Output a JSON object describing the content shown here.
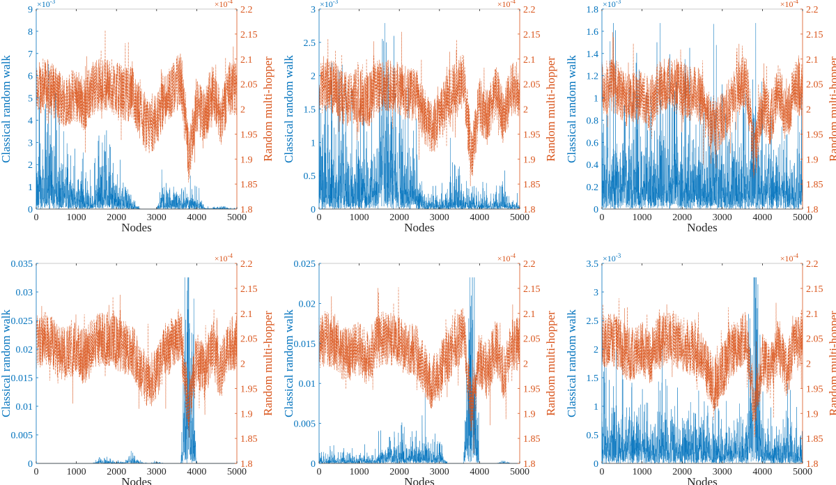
{
  "chart_data": {
    "type": "line",
    "layout": "2x3 grid",
    "x_ticks": [
      0,
      1000,
      2000,
      3000,
      4000,
      5000
    ],
    "xlabel": "Nodes",
    "xlim": [
      0,
      5000
    ],
    "bin_x": [
      0,
      200,
      400,
      600,
      800,
      1000,
      1200,
      1400,
      1600,
      1800,
      2000,
      2200,
      2400,
      2600,
      2800,
      3000,
      3200,
      3400,
      3600,
      3800,
      4000,
      4200,
      4400,
      4600,
      4800
    ],
    "colors": {
      "classical": "#0072BD",
      "multi_hopper": "#D95319"
    },
    "grid": false,
    "legend": "none",
    "panels": [
      {
        "left_axis": {
          "label": "Classical random walk",
          "multiplier": "×10",
          "exponent": "-3",
          "ylim": [
            0,
            9
          ],
          "ticks": [
            "0",
            "1",
            "2",
            "3",
            "4",
            "5",
            "6",
            "7",
            "8",
            "9"
          ]
        },
        "right_axis": {
          "label": "Random multi-hopper",
          "multiplier": "×10",
          "exponent": "-4",
          "ylim": [
            1.8,
            2.2
          ],
          "ticks": [
            "1.8",
            "1.85",
            "1.9",
            "1.95",
            "2",
            "2.05",
            "2.1",
            "2.15",
            "2.2"
          ]
        },
        "series": [
          {
            "axis": "left",
            "style": "solid",
            "approx_bin_means": [
              1.0,
              1.2,
              1.0,
              0.8,
              0.6,
              0.5,
              0.4,
              0.2,
              0.8,
              0.7,
              0.4,
              0.3,
              0.2,
              0,
              0,
              0,
              0.4,
              0.3,
              0.3,
              0.2,
              0.2,
              0.02,
              0.02,
              0.05,
              0.01
            ]
          },
          {
            "axis": "right",
            "style": "dashed",
            "approx_bin_means": [
              2.04,
              2.05,
              2.04,
              2.02,
              2.02,
              2.03,
              2.01,
              2.04,
              2.05,
              2.05,
              2.04,
              2.03,
              2.03,
              1.99,
              1.96,
              1.98,
              2.02,
              2.04,
              2.06,
              1.9,
              2.01,
              1.98,
              2.04,
              1.98,
              2.04
            ]
          }
        ]
      },
      {
        "left_axis": {
          "label": "Classical random walk",
          "multiplier": "×10",
          "exponent": "-3",
          "ylim": [
            0,
            3
          ],
          "ticks": [
            "0",
            "0.5",
            "1",
            "1.5",
            "2",
            "2.5",
            "3"
          ]
        },
        "right_axis": {
          "label": "Random multi-hopper",
          "multiplier": "×10",
          "exponent": "-4",
          "ylim": [
            1.8,
            2.2
          ],
          "ticks": [
            "1.8",
            "1.85",
            "1.9",
            "1.95",
            "2",
            "2.05",
            "2.1",
            "2.15",
            "2.2"
          ]
        },
        "series": [
          {
            "axis": "left",
            "style": "solid",
            "approx_bin_means": [
              0.4,
              0.4,
              0.35,
              0.35,
              0.3,
              0.3,
              0.3,
              0.25,
              0.7,
              0.6,
              0.35,
              0.3,
              0.3,
              0.08,
              0.06,
              0.05,
              0.08,
              0.15,
              0.1,
              0.08,
              0.06,
              0.05,
              0.05,
              0.1,
              0.03
            ]
          },
          {
            "axis": "right",
            "style": "dashed",
            "approx_bin_means": [
              2.04,
              2.05,
              2.04,
              2.02,
              2.02,
              2.03,
              2.01,
              2.04,
              2.05,
              2.05,
              2.04,
              2.03,
              2.03,
              1.99,
              1.96,
              1.98,
              2.02,
              2.04,
              2.06,
              1.9,
              2.01,
              1.98,
              2.04,
              1.98,
              2.04
            ]
          }
        ]
      },
      {
        "left_axis": {
          "label": "Classical random walk",
          "multiplier": "×10",
          "exponent": "-3",
          "ylim": [
            0,
            1.8
          ],
          "ticks": [
            "0",
            "0.2",
            "0.4",
            "0.6",
            "0.8",
            "1",
            "1.2",
            "1.4",
            "1.6",
            "1.8"
          ]
        },
        "right_axis": {
          "label": "Random multi-hopper",
          "multiplier": "×10",
          "exponent": "-4",
          "ylim": [
            1.8,
            2.2
          ],
          "ticks": [
            "1.8",
            "1.85",
            "1.9",
            "1.95",
            "2",
            "2.05",
            "2.1",
            "2.15",
            "2.2"
          ]
        },
        "series": [
          {
            "axis": "left",
            "style": "solid",
            "approx_bin_means": [
              0.25,
              0.25,
              0.25,
              0.22,
              0.22,
              0.22,
              0.2,
              0.2,
              0.3,
              0.3,
              0.22,
              0.2,
              0.2,
              0.18,
              0.18,
              0.18,
              0.18,
              0.2,
              0.22,
              0.3,
              0.18,
              0.18,
              0.17,
              0.17,
              0.15
            ]
          },
          {
            "axis": "right",
            "style": "dashed",
            "approx_bin_means": [
              2.04,
              2.05,
              2.04,
              2.02,
              2.02,
              2.03,
              2.01,
              2.04,
              2.05,
              2.05,
              2.04,
              2.03,
              2.03,
              1.99,
              1.96,
              1.98,
              2.02,
              2.04,
              2.06,
              1.9,
              2.01,
              1.98,
              2.04,
              1.98,
              2.04
            ]
          }
        ]
      },
      {
        "left_axis": {
          "label": "Classical random walk",
          "multiplier": "",
          "exponent": "",
          "ylim": [
            0,
            0.035
          ],
          "ticks": [
            "0",
            "0.005",
            "0.01",
            "0.015",
            "0.02",
            "0.025",
            "0.03",
            "0.035"
          ]
        },
        "right_axis": {
          "label": "Random multi-hopper",
          "multiplier": "×10",
          "exponent": "-4",
          "ylim": [
            1.8,
            2.2
          ],
          "ticks": [
            "1.8",
            "1.85",
            "1.9",
            "1.95",
            "2",
            "2.05",
            "2.1",
            "2.15",
            "2.2"
          ]
        },
        "series": [
          {
            "axis": "left",
            "style": "solid",
            "approx_bin_means": [
              0,
              0,
              0,
              0,
              0,
              0,
              0,
              0,
              0.0003,
              0.0002,
              0.0001,
              0.0001,
              0.0005,
              0.0001,
              0,
              0.0001,
              0,
              0,
              0,
              0.012,
              0,
              0,
              0,
              0,
              0
            ]
          },
          {
            "axis": "right",
            "style": "dashed",
            "approx_bin_means": [
              2.04,
              2.05,
              2.04,
              2.02,
              2.02,
              2.03,
              2.01,
              2.04,
              2.05,
              2.05,
              2.04,
              2.03,
              2.03,
              1.99,
              1.96,
              1.98,
              2.02,
              2.04,
              2.06,
              1.9,
              2.01,
              1.98,
              2.04,
              1.98,
              2.04
            ]
          }
        ]
      },
      {
        "left_axis": {
          "label": "Classical random walk",
          "multiplier": "",
          "exponent": "",
          "ylim": [
            0,
            0.025
          ],
          "ticks": [
            "0",
            "0.005",
            "0.01",
            "0.015",
            "0.02",
            "0.025"
          ]
        },
        "right_axis": {
          "label": "Random multi-hopper",
          "multiplier": "×10",
          "exponent": "-4",
          "ylim": [
            1.8,
            2.2
          ],
          "ticks": [
            "1.8",
            "1.85",
            "1.9",
            "1.95",
            "2",
            "2.05",
            "2.1",
            "2.15",
            "2.2"
          ]
        },
        "series": [
          {
            "axis": "left",
            "style": "solid",
            "approx_bin_means": [
              0.0003,
              0.0003,
              0.0003,
              0.0003,
              0.0003,
              0.0003,
              0.0003,
              0.0003,
              0.0008,
              0.0008,
              0.0008,
              0.0008,
              0.0008,
              0.0008,
              0.0008,
              0.0008,
              0,
              0,
              0,
              0.01,
              0,
              0,
              0,
              0.0001,
              0
            ]
          },
          {
            "axis": "right",
            "style": "dashed",
            "approx_bin_means": [
              2.04,
              2.05,
              2.04,
              2.02,
              2.02,
              2.03,
              2.01,
              2.04,
              2.05,
              2.05,
              2.04,
              2.03,
              2.03,
              1.99,
              1.96,
              1.98,
              2.02,
              2.04,
              2.06,
              1.9,
              2.01,
              1.98,
              2.04,
              1.98,
              2.04
            ]
          }
        ]
      },
      {
        "left_axis": {
          "label": "Classical random walk",
          "multiplier": "×10",
          "exponent": "-3",
          "ylim": [
            0,
            3.5
          ],
          "ticks": [
            "0",
            "0.5",
            "1",
            "1.5",
            "2",
            "2.5",
            "3",
            "3.5"
          ]
        },
        "right_axis": {
          "label": "Random multi-hopper",
          "multiplier": "×10",
          "exponent": "-4",
          "ylim": [
            1.8,
            2.2
          ],
          "ticks": [
            "1.8",
            "1.85",
            "1.9",
            "1.95",
            "2",
            "2.05",
            "2.1",
            "2.15",
            "2.2"
          ]
        },
        "series": [
          {
            "axis": "left",
            "style": "solid",
            "approx_bin_means": [
              0.35,
              0.35,
              0.3,
              0.3,
              0.3,
              0.3,
              0.25,
              0.25,
              0.35,
              0.3,
              0.25,
              0.25,
              0.25,
              0.25,
              0.2,
              0.2,
              0.2,
              0.2,
              0.25,
              1.2,
              0.2,
              0.2,
              0.2,
              0.25,
              0.15
            ]
          },
          {
            "axis": "right",
            "style": "dashed",
            "approx_bin_means": [
              2.04,
              2.05,
              2.04,
              2.02,
              2.02,
              2.03,
              2.01,
              2.04,
              2.05,
              2.05,
              2.04,
              2.03,
              2.03,
              1.99,
              1.96,
              1.98,
              2.02,
              2.04,
              2.06,
              1.9,
              2.01,
              1.98,
              2.04,
              1.98,
              2.04
            ]
          }
        ]
      }
    ]
  }
}
